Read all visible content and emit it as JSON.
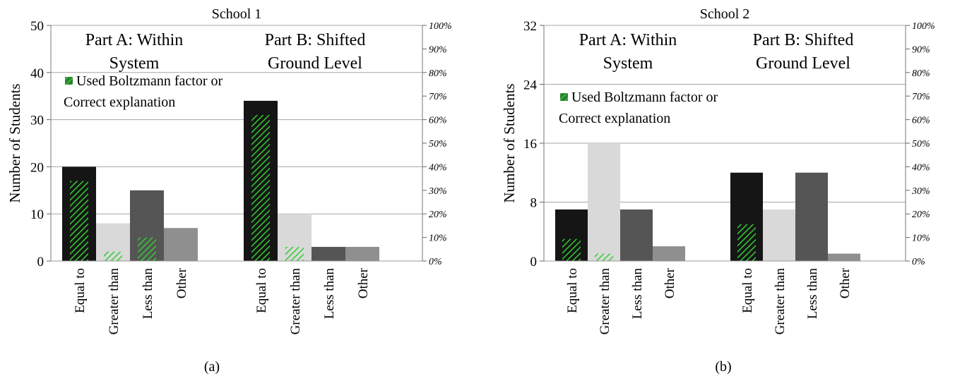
{
  "chart_data": [
    {
      "type": "bar",
      "title": "School 1",
      "ylabel": "Number of Students",
      "ylim": [
        0,
        50
      ],
      "yticks": [
        "0",
        "10",
        "20",
        "30",
        "40",
        "50"
      ],
      "y2ticks": [
        "0%",
        "10%",
        "20%",
        "30%",
        "40%",
        "50%",
        "60%",
        "70%",
        "80%",
        "90%",
        "100%"
      ],
      "groups": [
        {
          "title": [
            "Part A: Within",
            "System"
          ],
          "categories": [
            "Equal to",
            "Greater than",
            "Less than",
            "Other"
          ],
          "values": [
            20,
            8,
            15,
            7
          ],
          "boltzmann": [
            17,
            2,
            5,
            0
          ]
        },
        {
          "title": [
            "Part B: Shifted",
            "Ground Level"
          ],
          "categories": [
            "Equal to",
            "Greater than",
            "Less than",
            "Other"
          ],
          "values": [
            34,
            10,
            3,
            3
          ],
          "boltzmann": [
            31,
            3,
            0,
            0
          ]
        }
      ],
      "legend": [
        "Used Boltzmann factor or",
        "Correct explanation"
      ],
      "caption": "(a)"
    },
    {
      "type": "bar",
      "title": "School 2",
      "ylabel": "Number of Students",
      "ylim": [
        0,
        32
      ],
      "yticks": [
        "0",
        "8",
        "16",
        "24",
        "32"
      ],
      "y2ticks": [
        "0%",
        "10%",
        "20%",
        "30%",
        "40%",
        "50%",
        "60%",
        "70%",
        "80%",
        "90%",
        "100%"
      ],
      "groups": [
        {
          "title": [
            "Part A: Within",
            "System"
          ],
          "categories": [
            "Equal to",
            "Greater than",
            "Less than",
            "Other"
          ],
          "values": [
            7,
            16,
            7,
            2
          ],
          "boltzmann": [
            3,
            1,
            0,
            0
          ]
        },
        {
          "title": [
            "Part B: Shifted",
            "Ground Level"
          ],
          "categories": [
            "Equal to",
            "Greater than",
            "Less than",
            "Other"
          ],
          "values": [
            12,
            7,
            12,
            1
          ],
          "boltzmann": [
            5,
            0,
            0,
            0
          ]
        }
      ],
      "legend": [
        "Used Boltzmann factor or",
        "Correct explanation"
      ],
      "caption": "(b)"
    }
  ],
  "colors": {
    "bars": [
      "#151515",
      "#d9d9d9",
      "#555555",
      "#8f8f8f"
    ],
    "hatch": "#32cd32",
    "legend_swatch": "#2e7d32",
    "grid": "#a6a6a6"
  }
}
